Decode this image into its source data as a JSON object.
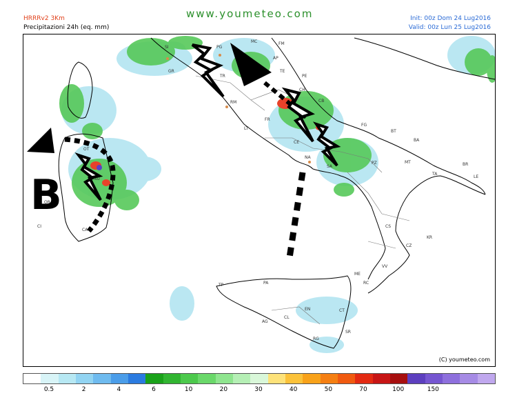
{
  "header": {
    "model": "HRRRv2 3Km",
    "variable": "Precipitazioni 24h (eq. mm)",
    "site": "www.youmeteo.com",
    "init": "Init: 00z Dom 24 Lug2016",
    "valid": "Valid: 00z Lun  25 Lug2016"
  },
  "map": {
    "copyright": "(C) youmeteo.com",
    "big_letter": "B",
    "cities": [
      "SI",
      "PG",
      "MC",
      "FM",
      "AP",
      "GR",
      "TE",
      "PE",
      "TR",
      "RM",
      "CH",
      "FR",
      "LT",
      "CB",
      "FG",
      "BT",
      "BA",
      "CE",
      "NA",
      "SA",
      "PZ",
      "MT",
      "TA",
      "BR",
      "LE",
      "CS",
      "KR",
      "CZ",
      "VV",
      "ME",
      "RC",
      "TP",
      "PA",
      "AG",
      "EN",
      "CT",
      "CL",
      "RG",
      "SR",
      "OT",
      "NU",
      "OR",
      "CA",
      "CI"
    ],
    "colors": {
      "light_precip": "#aee3f0",
      "medium_precip": "#57c95a",
      "heavy_precip": "#e8422a",
      "extreme_precip": "#5a3fc8",
      "arrows": "#000000"
    }
  },
  "legend": {
    "colors": [
      "#ffffff",
      "#d8f4f7",
      "#b7e8f3",
      "#92d4f2",
      "#6fbbef",
      "#4b9de9",
      "#2b7be0",
      "#1aa21a",
      "#31b531",
      "#4cc94c",
      "#6ad86a",
      "#8fe58f",
      "#b5efb5",
      "#d9f7d9",
      "#fde27a",
      "#fbc23a",
      "#f8a21a",
      "#f57f12",
      "#f05a10",
      "#e32a12",
      "#c71515",
      "#a70f0f",
      "#5d3fbf",
      "#7656d1",
      "#8e70dd",
      "#a68be5",
      "#c0a8ee"
    ],
    "labels": [
      "0.5",
      "2",
      "4",
      "6",
      "10",
      "20",
      "30",
      "40",
      "50",
      "70",
      "100",
      "150"
    ]
  }
}
